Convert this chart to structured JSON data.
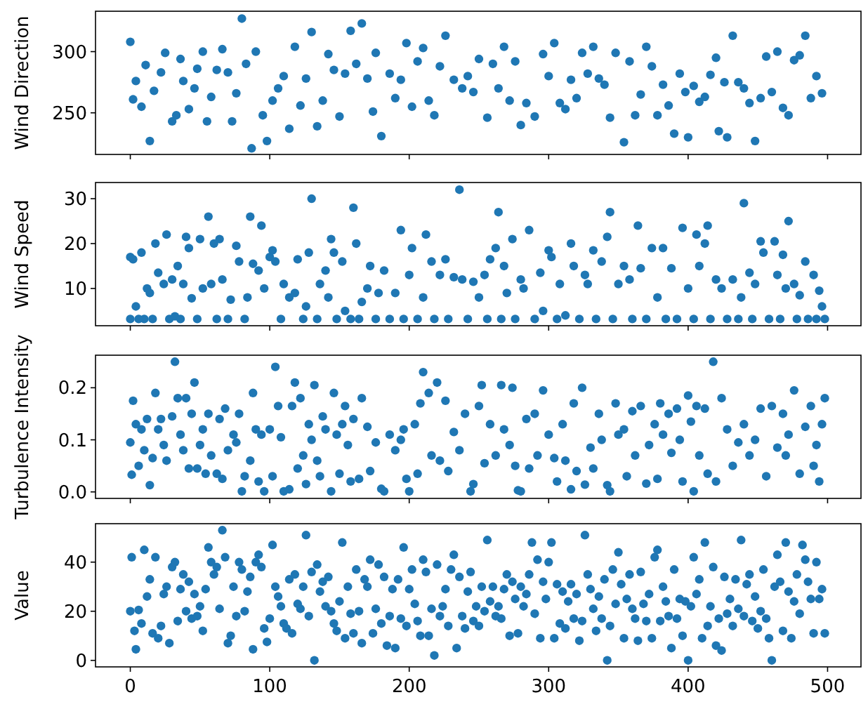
{
  "chart_data": [
    {
      "type": "scatter",
      "ylabel": "Wind Direction",
      "color": "#1f77b4",
      "marker": "circle",
      "tick_labels": "y",
      "xlim": [
        -24.95,
        523.95
      ],
      "xticks": [
        0,
        100,
        200,
        300,
        400,
        500
      ],
      "ylim": [
        216,
        333
      ],
      "yticks": [
        250,
        300
      ],
      "x": [
        0,
        2,
        4,
        8,
        11,
        14,
        17,
        22,
        25,
        30,
        33,
        36,
        38,
        42,
        46,
        48,
        52,
        55,
        58,
        62,
        66,
        70,
        73,
        76,
        80,
        83,
        87,
        90,
        95,
        98,
        102,
        106,
        110,
        114,
        118,
        122,
        126,
        130,
        134,
        138,
        142,
        146,
        150,
        154,
        158,
        162,
        166,
        170,
        174,
        176,
        180,
        186,
        190,
        194,
        198,
        202,
        206,
        210,
        214,
        218,
        222,
        226,
        232,
        238,
        242,
        246,
        250,
        256,
        260,
        264,
        268,
        272,
        276,
        280,
        284,
        290,
        296,
        300,
        304,
        308,
        312,
        316,
        320,
        324,
        328,
        332,
        336,
        340,
        344,
        348,
        354,
        358,
        362,
        366,
        370,
        374,
        378,
        382,
        386,
        390,
        394,
        398,
        400,
        404,
        408,
        412,
        416,
        420,
        422,
        426,
        428,
        432,
        436,
        440,
        444,
        448,
        452,
        456,
        460,
        464,
        468,
        472,
        476,
        480,
        484,
        488,
        492,
        496
      ],
      "values": [
        308,
        261,
        276,
        255,
        289,
        227,
        268,
        283,
        299,
        243,
        248,
        294,
        276,
        253,
        270,
        286,
        300,
        243,
        263,
        285,
        302,
        283,
        243,
        266,
        327,
        290,
        221,
        300,
        248,
        227,
        260,
        270,
        280,
        237,
        304,
        256,
        278,
        316,
        239,
        260,
        298,
        285,
        247,
        282,
        317,
        290,
        323,
        278,
        251,
        299,
        231,
        282,
        262,
        277,
        307,
        255,
        292,
        303,
        260,
        248,
        288,
        313,
        277,
        270,
        280,
        267,
        294,
        246,
        290,
        270,
        304,
        260,
        292,
        240,
        258,
        247,
        298,
        280,
        307,
        258,
        253,
        277,
        262,
        299,
        282,
        304,
        278,
        273,
        246,
        299,
        226,
        292,
        248,
        265,
        304,
        288,
        248,
        273,
        256,
        233,
        282,
        267,
        230,
        272,
        259,
        263,
        281,
        295,
        235,
        275,
        230,
        313,
        275,
        270,
        258,
        227,
        262,
        296,
        267,
        300,
        254,
        248,
        293,
        297,
        313,
        262,
        280,
        266
      ]
    },
    {
      "type": "scatter",
      "ylabel": "Wind Speed",
      "color": "#1f77b4",
      "marker": "circle",
      "tick_labels": "y",
      "xlim": [
        -24.95,
        523.95
      ],
      "xticks": [
        0,
        100,
        200,
        300,
        400,
        500
      ],
      "ylim": [
        1.7,
        33.6
      ],
      "yticks": [
        10,
        20,
        30
      ],
      "x": [
        0,
        0,
        2,
        4,
        6,
        8,
        10,
        12,
        14,
        16,
        18,
        20,
        24,
        26,
        28,
        30,
        32,
        34,
        36,
        38,
        40,
        42,
        44,
        48,
        50,
        52,
        56,
        58,
        60,
        62,
        64,
        66,
        70,
        72,
        76,
        78,
        82,
        84,
        86,
        88,
        92,
        94,
        96,
        100,
        102,
        104,
        108,
        110,
        114,
        118,
        120,
        124,
        126,
        128,
        130,
        134,
        136,
        140,
        142,
        144,
        146,
        148,
        152,
        154,
        158,
        160,
        162,
        164,
        166,
        170,
        172,
        176,
        178,
        182,
        186,
        190,
        194,
        196,
        200,
        202,
        206,
        210,
        212,
        216,
        218,
        222,
        226,
        228,
        232,
        236,
        238,
        242,
        246,
        250,
        254,
        256,
        258,
        262,
        264,
        266,
        268,
        270,
        274,
        276,
        280,
        282,
        286,
        290,
        294,
        296,
        300,
        302,
        306,
        308,
        312,
        316,
        318,
        322,
        326,
        328,
        332,
        334,
        338,
        342,
        344,
        346,
        350,
        354,
        358,
        360,
        364,
        366,
        370,
        374,
        378,
        382,
        384,
        388,
        392,
        396,
        400,
        404,
        406,
        408,
        412,
        414,
        416,
        420,
        424,
        428,
        432,
        436,
        438,
        440,
        444,
        446,
        448,
        452,
        454,
        458,
        462,
        464,
        466,
        468,
        470,
        472,
        476,
        478,
        480,
        484,
        486,
        490,
        492,
        494,
        496,
        498
      ],
      "values": [
        3.2,
        17,
        16.5,
        6,
        3.2,
        18,
        3.2,
        10,
        9,
        3.2,
        20,
        13.5,
        11,
        22,
        3.2,
        12,
        3.8,
        15,
        3.2,
        11,
        21.5,
        19,
        7.8,
        3.2,
        21,
        10,
        26,
        11,
        20,
        3.2,
        21,
        12,
        3.2,
        7.5,
        19.5,
        16,
        3.2,
        8,
        26,
        15.5,
        14,
        24,
        10,
        17,
        18.5,
        16,
        3.2,
        11,
        8,
        9,
        16.5,
        3.2,
        6,
        18,
        30,
        3.2,
        11,
        14,
        8,
        21,
        18,
        3.2,
        16,
        5,
        3.2,
        28,
        20,
        3.2,
        7,
        10,
        15,
        3.2,
        9,
        14,
        3.2,
        9,
        23,
        3.2,
        13,
        19,
        3.2,
        8,
        22,
        16,
        3.2,
        13,
        16.5,
        3.2,
        12.5,
        32,
        12,
        3.2,
        11.5,
        8,
        13,
        3.2,
        16.5,
        19,
        27,
        3.2,
        15,
        9,
        21,
        3.2,
        12,
        10,
        23,
        3.2,
        13.5,
        5,
        18.5,
        17,
        3.2,
        11,
        4,
        20,
        15,
        3.2,
        13,
        11,
        18.5,
        3.2,
        16,
        21.5,
        27,
        3.2,
        11,
        15,
        12,
        3.2,
        24,
        14.5,
        3.2,
        19,
        8,
        19,
        3.2,
        14.5,
        3.2,
        23.5,
        10,
        3.2,
        22,
        15,
        20,
        24,
        3.2,
        12,
        10,
        3.2,
        12,
        3.2,
        8,
        29,
        13.5,
        3.2,
        11,
        20.5,
        18,
        3.2,
        20.5,
        13,
        3.2,
        17.5,
        10,
        25,
        11,
        3.2,
        8.5,
        16,
        3.2,
        13,
        3.2,
        9.5,
        6,
        3.2
      ]
    },
    {
      "type": "scatter",
      "ylabel": "Turbulence Intensity",
      "color": "#1f77b4",
      "marker": "circle",
      "tick_labels": "y",
      "xlim": [
        -24.95,
        523.95
      ],
      "xticks": [
        0,
        100,
        200,
        300,
        400,
        500
      ],
      "ylim": [
        -0.0125,
        0.2625
      ],
      "yticks": [
        {
          "value": 0,
          "label": "0.0"
        },
        0.1,
        0.2
      ],
      "x": [
        0,
        1,
        2,
        4,
        6,
        8,
        10,
        12,
        14,
        16,
        18,
        20,
        22,
        24,
        26,
        30,
        32,
        34,
        36,
        38,
        40,
        42,
        44,
        46,
        48,
        50,
        52,
        54,
        56,
        58,
        62,
        64,
        66,
        68,
        70,
        74,
        76,
        78,
        80,
        82,
        86,
        88,
        90,
        92,
        94,
        96,
        100,
        102,
        104,
        106,
        108,
        110,
        114,
        116,
        118,
        120,
        122,
        124,
        126,
        128,
        130,
        132,
        134,
        136,
        138,
        140,
        144,
        146,
        148,
        150,
        152,
        154,
        156,
        158,
        160,
        164,
        166,
        170,
        172,
        176,
        180,
        182,
        186,
        190,
        194,
        196,
        198,
        200,
        204,
        206,
        208,
        210,
        214,
        216,
        220,
        222,
        226,
        228,
        232,
        236,
        240,
        244,
        246,
        250,
        252,
        254,
        258,
        262,
        266,
        268,
        272,
        274,
        276,
        278,
        280,
        284,
        286,
        290,
        292,
        296,
        300,
        304,
        306,
        310,
        312,
        316,
        318,
        320,
        324,
        326,
        330,
        332,
        336,
        338,
        342,
        344,
        348,
        350,
        354,
        356,
        360,
        362,
        366,
        370,
        372,
        376,
        378,
        380,
        382,
        386,
        388,
        392,
        394,
        396,
        400,
        402,
        404,
        406,
        408,
        412,
        414,
        418,
        420,
        424,
        428,
        432,
        436,
        440,
        444,
        448,
        452,
        456,
        460,
        464,
        468,
        470,
        472,
        476,
        480,
        484,
        488,
        490,
        492,
        494,
        496,
        498
      ],
      "values": [
        0.095,
        0.033,
        0.175,
        0.13,
        0.05,
        0.12,
        0.08,
        0.14,
        0.013,
        0.065,
        0.19,
        0.12,
        0.14,
        0.09,
        0.06,
        0.145,
        0.25,
        0.18,
        0.11,
        0.08,
        0.18,
        0.045,
        0.15,
        0.21,
        0.045,
        0.09,
        0.12,
        0.035,
        0.15,
        0.07,
        0.035,
        0.14,
        0.025,
        0.16,
        0.08,
        0.11,
        0.095,
        0.15,
        0.001,
        0.03,
        0.06,
        0.19,
        0.12,
        0.02,
        0.11,
        0.001,
        0.12,
        0.03,
        0.24,
        0.165,
        0.105,
        0.001,
        0.005,
        0.165,
        0.21,
        0.045,
        0.18,
        0.07,
        0.015,
        0.13,
        0.1,
        0.205,
        0.06,
        0.03,
        0.145,
        0.12,
        0.001,
        0.19,
        0.11,
        0.035,
        0.13,
        0.165,
        0.09,
        0.02,
        0.14,
        0.025,
        0.18,
        0.125,
        0.04,
        0.095,
        0.006,
        0.001,
        0.11,
        0.08,
        0.1,
        0.12,
        0.025,
        0.001,
        0.13,
        0.035,
        0.17,
        0.23,
        0.19,
        0.07,
        0.21,
        0.06,
        0.175,
        0.04,
        0.115,
        0.08,
        0.15,
        0.001,
        0.015,
        0.165,
        0.205,
        0.055,
        0.13,
        0.07,
        0.205,
        0.12,
        0.09,
        0.2,
        0.05,
        0.003,
        0.001,
        0.14,
        0.045,
        0.15,
        0.07,
        0.195,
        0.11,
        0.065,
        0.02,
        0.13,
        0.06,
        0.005,
        0.17,
        0.04,
        0.2,
        0.014,
        0.085,
        0.045,
        0.15,
        0.1,
        0.013,
        0.001,
        0.17,
        0.11,
        0.12,
        0.03,
        0.155,
        0.07,
        0.165,
        0.016,
        0.09,
        0.13,
        0.025,
        0.17,
        0.11,
        0.15,
        0.075,
        0.16,
        0.1,
        0.02,
        0.185,
        0.135,
        0.001,
        0.165,
        0.07,
        0.16,
        0.035,
        0.25,
        0.02,
        0.18,
        0.12,
        0.05,
        0.095,
        0.13,
        0.07,
        0.1,
        0.16,
        0.03,
        0.165,
        0.085,
        0.15,
        0.07,
        0.11,
        0.195,
        0.035,
        0.125,
        0.165,
        0.05,
        0.09,
        0.02,
        0.13,
        0.18
      ]
    },
    {
      "type": "scatter",
      "ylabel": "Value",
      "color": "#1f77b4",
      "marker": "circle",
      "xlim": [
        -24.95,
        523.95
      ],
      "xticks": [
        0,
        100,
        200,
        300,
        400,
        500
      ],
      "ylim": [
        -2.65,
        55.65
      ],
      "yticks": [
        0,
        20,
        40
      ],
      "x": [
        0,
        1,
        3,
        4,
        6,
        8,
        10,
        12,
        14,
        16,
        18,
        20,
        22,
        24,
        26,
        28,
        30,
        32,
        34,
        36,
        38,
        40,
        42,
        44,
        46,
        48,
        50,
        52,
        54,
        56,
        58,
        60,
        62,
        64,
        66,
        68,
        70,
        72,
        74,
        76,
        78,
        80,
        82,
        84,
        86,
        88,
        90,
        92,
        94,
        96,
        98,
        100,
        102,
        104,
        106,
        108,
        110,
        112,
        114,
        116,
        118,
        120,
        122,
        124,
        126,
        128,
        130,
        132,
        134,
        136,
        138,
        140,
        142,
        144,
        146,
        148,
        150,
        152,
        154,
        156,
        158,
        160,
        162,
        164,
        166,
        168,
        170,
        172,
        174,
        176,
        178,
        180,
        182,
        184,
        186,
        188,
        190,
        192,
        194,
        196,
        198,
        200,
        202,
        204,
        206,
        208,
        210,
        212,
        214,
        216,
        218,
        220,
        222,
        224,
        226,
        228,
        230,
        232,
        234,
        236,
        238,
        240,
        242,
        244,
        246,
        248,
        250,
        252,
        254,
        256,
        258,
        260,
        262,
        264,
        266,
        268,
        270,
        272,
        274,
        276,
        278,
        280,
        282,
        284,
        286,
        288,
        290,
        292,
        294,
        296,
        298,
        300,
        302,
        304,
        306,
        308,
        310,
        312,
        314,
        316,
        318,
        320,
        322,
        324,
        326,
        328,
        330,
        332,
        334,
        336,
        338,
        340,
        342,
        344,
        346,
        348,
        350,
        352,
        354,
        356,
        358,
        360,
        362,
        364,
        366,
        368,
        370,
        372,
        374,
        376,
        378,
        380,
        382,
        384,
        386,
        388,
        390,
        392,
        394,
        396,
        398,
        400,
        402,
        404,
        406,
        408,
        410,
        412,
        414,
        416,
        418,
        420,
        422,
        424,
        426,
        428,
        430,
        432,
        434,
        436,
        438,
        440,
        442,
        444,
        446,
        448,
        450,
        452,
        454,
        456,
        458,
        460,
        462,
        464,
        466,
        468,
        470,
        472,
        474,
        476,
        478,
        480,
        482,
        484,
        486,
        488,
        490,
        492,
        494,
        496,
        498
      ],
      "values": [
        20,
        42,
        12,
        4.5,
        20.5,
        15,
        45,
        26,
        33,
        11,
        42,
        9,
        14,
        27,
        30,
        7,
        38,
        40,
        16,
        29,
        35,
        20,
        32,
        17,
        27,
        18,
        22,
        12,
        29,
        46,
        40,
        35,
        38,
        21,
        53,
        42,
        7,
        10,
        30,
        18,
        40,
        37,
        20,
        28,
        34,
        4.5,
        40,
        43,
        38,
        13,
        7.5,
        17,
        47,
        30,
        26,
        22,
        15,
        13,
        33,
        11,
        35,
        23,
        21,
        30,
        51,
        18,
        36,
        0,
        39,
        28,
        32,
        22,
        34,
        20,
        15,
        12,
        24,
        48,
        9,
        30,
        19,
        11,
        37,
        20,
        7,
        33,
        30,
        41,
        11,
        21,
        39,
        15,
        34,
        6,
        18,
        29,
        5,
        33,
        17,
        46,
        14,
        29,
        37,
        23,
        16,
        10,
        41,
        36,
        10,
        21,
        2,
        39,
        18,
        22,
        29,
        14,
        37,
        43,
        5,
        34,
        18,
        13,
        28,
        36,
        16,
        22,
        14,
        30,
        20,
        49,
        24,
        30,
        18,
        22,
        17,
        29,
        35,
        10,
        32,
        25,
        11,
        30,
        22,
        27,
        35,
        48,
        19,
        41,
        9,
        32,
        25,
        40,
        48,
        9,
        31,
        15,
        28,
        13,
        24,
        31,
        17,
        27,
        8,
        16,
        51,
        35,
        29,
        21,
        12,
        26,
        17,
        33,
        0,
        14,
        37,
        23,
        44,
        31,
        9,
        25,
        35,
        21,
        17,
        8,
        36,
        23,
        16,
        27,
        9,
        42,
        45,
        16,
        30,
        24,
        18,
        5,
        37,
        17,
        25,
        10,
        24,
        0,
        22,
        42,
        27,
        33,
        9,
        48,
        14,
        22,
        38,
        6,
        17,
        4,
        34,
        19,
        25,
        14,
        33,
        21,
        49,
        18,
        31,
        35,
        16,
        26,
        13,
        20,
        37,
        17,
        9,
        0,
        30,
        43,
        32,
        12,
        48,
        28,
        9,
        24,
        35,
        19,
        47,
        41,
        32,
        25,
        11,
        40,
        25,
        29,
        11
      ]
    }
  ]
}
